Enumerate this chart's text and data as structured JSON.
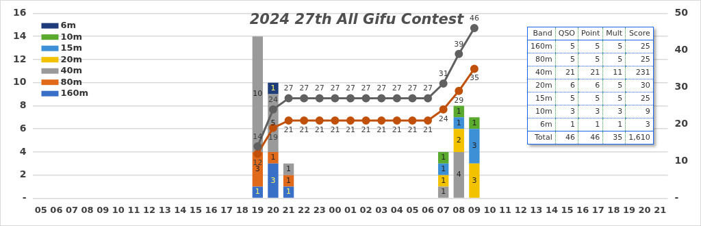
{
  "chart_data": [
    {
      "type": "bar",
      "title": "2024 27th All Gifu Contest",
      "stacked": true,
      "data_labels": true,
      "legend": "top left",
      "grid": "y",
      "marker": "circle",
      "categories": [
        "05",
        "06",
        "07",
        "08",
        "09",
        "10",
        "11",
        "12",
        "13",
        "14",
        "15",
        "16",
        "17",
        "18",
        "19",
        "20",
        "21",
        "22",
        "23",
        "00",
        "01",
        "02",
        "03",
        "04",
        "05",
        "06",
        "07",
        "08",
        "09",
        "10",
        "11",
        "12",
        "13",
        "14",
        "15",
        "16",
        "17",
        "18",
        "19",
        "20",
        "21"
      ],
      "ylim": [
        0,
        16
      ],
      "yticks": [
        {
          "value": 0,
          "label": "-"
        },
        2,
        4,
        6,
        8,
        10,
        12,
        14,
        16
      ],
      "y2lim": [
        0,
        50
      ],
      "y2ticks": [
        {
          "value": 0,
          "label": "-"
        },
        10,
        20,
        30,
        40,
        50
      ],
      "series": [
        {
          "name": "160m",
          "color": "#3a6fc8",
          "values": [
            null,
            null,
            null,
            null,
            null,
            null,
            null,
            null,
            null,
            null,
            null,
            null,
            null,
            null,
            1,
            3,
            1,
            null,
            null,
            null,
            null,
            null,
            null,
            null,
            null,
            null,
            null,
            null,
            null,
            null,
            null,
            null,
            null,
            null,
            null,
            null,
            null,
            null,
            null,
            null,
            null
          ]
        },
        {
          "name": "80m",
          "color": "#e06a1a",
          "values": [
            null,
            null,
            null,
            null,
            null,
            null,
            null,
            null,
            null,
            null,
            null,
            null,
            null,
            null,
            3,
            1,
            1,
            null,
            null,
            null,
            null,
            null,
            null,
            null,
            null,
            null,
            null,
            null,
            null,
            null,
            null,
            null,
            null,
            null,
            null,
            null,
            null,
            null,
            null,
            null,
            null
          ]
        },
        {
          "name": "40m",
          "color": "#9a9a9a",
          "values": [
            null,
            null,
            null,
            null,
            null,
            null,
            null,
            null,
            null,
            null,
            null,
            null,
            null,
            null,
            10,
            5,
            1,
            null,
            null,
            null,
            null,
            null,
            null,
            null,
            null,
            null,
            1,
            4,
            null,
            null,
            null,
            null,
            null,
            null,
            null,
            null,
            null,
            null,
            null,
            null,
            null
          ]
        },
        {
          "name": "20m",
          "color": "#f2c200",
          "values": [
            null,
            null,
            null,
            null,
            null,
            null,
            null,
            null,
            null,
            null,
            null,
            null,
            null,
            null,
            null,
            null,
            null,
            null,
            null,
            null,
            null,
            null,
            null,
            null,
            null,
            null,
            1,
            2,
            3,
            null,
            null,
            null,
            null,
            null,
            null,
            null,
            null,
            null,
            null,
            null,
            null
          ]
        },
        {
          "name": "15m",
          "color": "#3d8fd6",
          "values": [
            null,
            null,
            null,
            null,
            null,
            null,
            null,
            null,
            null,
            null,
            null,
            null,
            null,
            null,
            null,
            null,
            null,
            null,
            null,
            null,
            null,
            null,
            null,
            null,
            null,
            null,
            1,
            1,
            3,
            null,
            null,
            null,
            null,
            null,
            null,
            null,
            null,
            null,
            null,
            null,
            null
          ]
        },
        {
          "name": "10m",
          "color": "#5aaa2e",
          "values": [
            null,
            null,
            null,
            null,
            null,
            null,
            null,
            null,
            null,
            null,
            null,
            null,
            null,
            null,
            null,
            null,
            null,
            null,
            null,
            null,
            null,
            null,
            null,
            null,
            null,
            null,
            1,
            1,
            1,
            null,
            null,
            null,
            null,
            null,
            null,
            null,
            null,
            null,
            null,
            null,
            null
          ]
        },
        {
          "name": "6m",
          "color": "#1f3c7a",
          "values": [
            null,
            null,
            null,
            null,
            null,
            null,
            null,
            null,
            null,
            null,
            null,
            null,
            null,
            null,
            null,
            1,
            null,
            null,
            null,
            null,
            null,
            null,
            null,
            null,
            null,
            null,
            null,
            null,
            null,
            null,
            null,
            null,
            null,
            null,
            null,
            null,
            null,
            null,
            null,
            null,
            null
          ]
        },
        {
          "type": "line",
          "axis": "y2",
          "color": "#606060",
          "values": [
            null,
            null,
            null,
            null,
            null,
            null,
            null,
            null,
            null,
            null,
            null,
            null,
            null,
            null,
            14,
            24,
            27,
            27,
            27,
            27,
            27,
            27,
            27,
            27,
            27,
            27,
            31,
            39,
            46,
            null,
            null,
            null,
            null,
            null,
            null,
            null,
            null,
            null,
            null,
            null,
            null
          ]
        },
        {
          "type": "line",
          "axis": "y2",
          "color": "#c0500a",
          "values": [
            null,
            null,
            null,
            null,
            null,
            null,
            null,
            null,
            null,
            null,
            null,
            null,
            null,
            null,
            12,
            19,
            21,
            21,
            21,
            21,
            21,
            21,
            21,
            21,
            21,
            21,
            24,
            29,
            35,
            null,
            null,
            null,
            null,
            null,
            null,
            null,
            null,
            null,
            null,
            null,
            null
          ]
        }
      ]
    },
    {
      "type": "other",
      "ylabel": "Band",
      "categories": [
        "QSO",
        "Point",
        "Mult",
        "Score"
      ],
      "y_categories": [
        "160m",
        "80m",
        "40m",
        "20m",
        "15m",
        "10m",
        "6m",
        "Total"
      ],
      "cell_labels": [
        [
          "5",
          "5",
          "5",
          "25"
        ],
        [
          "5",
          "5",
          "5",
          "25"
        ],
        [
          "21",
          "21",
          "11",
          "231"
        ],
        [
          "6",
          "6",
          "5",
          "30"
        ],
        [
          "5",
          "5",
          "5",
          "25"
        ],
        [
          "3",
          "3",
          "3",
          "9"
        ],
        [
          "1",
          "1",
          "1",
          "3"
        ],
        [
          "46",
          "46",
          "35",
          "1,610"
        ]
      ]
    }
  ]
}
